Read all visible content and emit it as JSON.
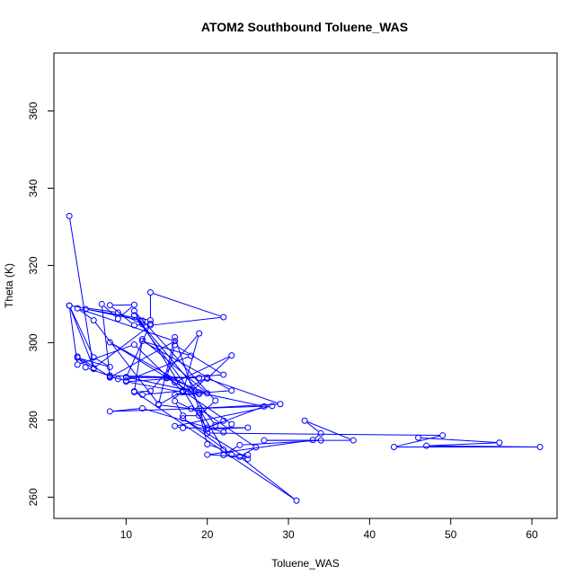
{
  "chart_data": {
    "type": "line",
    "title": "ATOM2 Southbound Toluene_WAS",
    "xlabel": "Toluene_WAS",
    "ylabel": "Theta (K)",
    "xlim": [
      1.1,
      63.1
    ],
    "ylim": [
      254.5,
      375
    ],
    "x_ticks": [
      10,
      20,
      30,
      40,
      50,
      60
    ],
    "y_ticks": [
      260,
      280,
      300,
      320,
      340,
      360
    ],
    "grid": false,
    "legend": "none",
    "color": "#0000ff",
    "markers": "open-circle",
    "series": [
      {
        "x": [
          3,
          6,
          4,
          8,
          6,
          3,
          9,
          12,
          12,
          5,
          13,
          13,
          22,
          13,
          6,
          3,
          4,
          11,
          17,
          20,
          18,
          15,
          16,
          22,
          10,
          17,
          19,
          13,
          11,
          12,
          20,
          15,
          10,
          27,
          20,
          22,
          21,
          11,
          19,
          8,
          16,
          23,
          20,
          29,
          18,
          14,
          17,
          23,
          22,
          12,
          8,
          28,
          16,
          17,
          25,
          20,
          11,
          21,
          19,
          17,
          16,
          19,
          20,
          22,
          19,
          26,
          24,
          20,
          33,
          34,
          32,
          38,
          27,
          34,
          24,
          22,
          25,
          17,
          23,
          25,
          24,
          31,
          11,
          12,
          17,
          19,
          16,
          23,
          12,
          18,
          10,
          8,
          4,
          5,
          9,
          8,
          19,
          10,
          13,
          11,
          8,
          11,
          9,
          7,
          8,
          16,
          4,
          6,
          14,
          16,
          20,
          49,
          43,
          61,
          47,
          56,
          46
        ],
        "y": [
          332.8,
          293.2,
          296.1,
          293.7,
          296.2,
          309.6,
          307.8,
          304.8,
          305.7,
          308.7,
          305.8,
          313.0,
          306.6,
          304.5,
          293.4,
          309.6,
          294.3,
          299.5,
          287.3,
          291.0,
          287.3,
          290.8,
          299.4,
          291.7,
          289.9,
          287.2,
          302.4,
          287.5,
          287.2,
          300.9,
          286.9,
          291.0,
          291.1,
          283.5,
          278.0,
          279.8,
          278.6,
          307.1,
          287.1,
          300.1,
          289.7,
          296.7,
          290.7,
          284.1,
          282.9,
          283.9,
          287.5,
          278.9,
          276.8,
          283.0,
          282.2,
          283.6,
          278.4,
          277.9,
          278.0,
          277.6,
          308.2,
          285.0,
          281.1,
          281.1,
          284.9,
          281.9,
          273.7,
          272.3,
          282.9,
          272.9,
          270.5,
          271.0,
          274.8,
          276.5,
          279.8,
          274.7,
          274.7,
          274.7,
          273.5,
          270.9,
          269.9,
          280.4,
          271.0,
          270.9,
          270.5,
          259.1,
          287.4,
          286.5,
          287.6,
          286.7,
          286.5,
          287.6,
          300.4,
          296.6,
          290.2,
          291.2,
          296.4,
          293.6,
          290.6,
          291.5,
          290.9,
          291.0,
          304.9,
          304.5,
          309.7,
          309.8,
          306.2,
          310.0,
          291.0,
          300.4,
          308.9,
          305.8,
          284.1,
          301.4,
          276.6,
          276.0,
          273.0,
          273.0,
          273.3,
          274.1,
          275.4
        ]
      }
    ]
  }
}
